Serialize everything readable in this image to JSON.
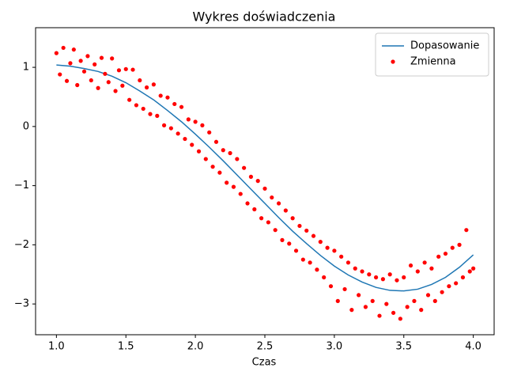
{
  "chart_data": {
    "type": "line",
    "title": "Wykres doświadczenia",
    "x_label": "Czas",
    "xlim": [
      0.85,
      4.15
    ],
    "ylim": [
      -3.52,
      1.67
    ],
    "xticks": [
      {
        "value": 1,
        "label": "1.0"
      },
      1.5,
      {
        "value": 2,
        "label": "2.0"
      },
      2.5,
      {
        "value": 3,
        "label": "3.0"
      },
      3.5,
      {
        "value": 4,
        "label": "4.0"
      }
    ],
    "yticks": [
      {
        "value": -3,
        "label": "−3"
      },
      {
        "value": -2,
        "label": "−2"
      },
      {
        "value": -1,
        "label": "−1"
      },
      0,
      1
    ],
    "legend": "upper right",
    "series": [
      {
        "name": "Dopasowanie",
        "type": "line",
        "color": "#1f77b4",
        "x": [
          1.0,
          1.1,
          1.2,
          1.3,
          1.4,
          1.5,
          1.6,
          1.7,
          1.8,
          1.9,
          2.0,
          2.1,
          2.2,
          2.3,
          2.4,
          2.5,
          2.6,
          2.7,
          2.8,
          2.9,
          3.0,
          3.1,
          3.2,
          3.3,
          3.4,
          3.5,
          3.6,
          3.7,
          3.8,
          3.9,
          4.0
        ],
        "values": [
          1.04,
          1.02,
          0.98,
          0.93,
          0.85,
          0.74,
          0.6,
          0.45,
          0.27,
          0.08,
          -0.13,
          -0.35,
          -0.58,
          -0.82,
          -1.06,
          -1.3,
          -1.54,
          -1.77,
          -1.98,
          -2.18,
          -2.36,
          -2.51,
          -2.63,
          -2.72,
          -2.77,
          -2.78,
          -2.75,
          -2.67,
          -2.55,
          -2.38,
          -2.17
        ]
      },
      {
        "name": "Zmienna",
        "type": "scatter",
        "color": "#ff0000",
        "x": [
          1.0,
          1.025,
          1.05,
          1.075,
          1.1,
          1.125,
          1.15,
          1.175,
          1.2,
          1.225,
          1.25,
          1.275,
          1.3,
          1.325,
          1.35,
          1.375,
          1.4,
          1.425,
          1.45,
          1.475,
          1.5,
          1.525,
          1.55,
          1.575,
          1.6,
          1.625,
          1.65,
          1.675,
          1.7,
          1.725,
          1.75,
          1.775,
          1.8,
          1.825,
          1.85,
          1.875,
          1.9,
          1.925,
          1.95,
          1.975,
          2.0,
          2.025,
          2.05,
          2.075,
          2.1,
          2.125,
          2.15,
          2.175,
          2.2,
          2.225,
          2.25,
          2.275,
          2.3,
          2.325,
          2.35,
          2.375,
          2.4,
          2.425,
          2.45,
          2.475,
          2.5,
          2.525,
          2.55,
          2.575,
          2.6,
          2.625,
          2.65,
          2.675,
          2.7,
          2.725,
          2.75,
          2.775,
          2.8,
          2.825,
          2.85,
          2.875,
          2.9,
          2.925,
          2.95,
          2.975,
          3.0,
          3.025,
          3.05,
          3.075,
          3.1,
          3.125,
          3.15,
          3.175,
          3.2,
          3.225,
          3.25,
          3.275,
          3.3,
          3.325,
          3.35,
          3.375,
          3.4,
          3.425,
          3.45,
          3.475,
          3.5,
          3.525,
          3.55,
          3.575,
          3.6,
          3.625,
          3.65,
          3.675,
          3.7,
          3.725,
          3.75,
          3.775,
          3.8,
          3.825,
          3.85,
          3.875,
          3.9,
          3.925,
          3.95,
          3.975,
          4.0
        ],
        "values": [
          1.24,
          0.88,
          1.33,
          0.77,
          1.07,
          1.3,
          0.7,
          1.11,
          0.93,
          1.19,
          0.78,
          1.05,
          0.65,
          1.16,
          0.89,
          0.75,
          1.15,
          0.6,
          0.95,
          0.69,
          0.97,
          0.45,
          0.96,
          0.36,
          0.78,
          0.3,
          0.66,
          0.21,
          0.71,
          0.18,
          0.52,
          0.02,
          0.49,
          -0.03,
          0.38,
          -0.12,
          0.33,
          -0.21,
          0.12,
          -0.31,
          0.08,
          -0.42,
          0.02,
          -0.55,
          -0.1,
          -0.68,
          -0.26,
          -0.78,
          -0.4,
          -0.95,
          -0.45,
          -1.02,
          -0.55,
          -1.14,
          -0.7,
          -1.3,
          -0.85,
          -1.4,
          -0.92,
          -1.55,
          -1.05,
          -1.62,
          -1.2,
          -1.75,
          -1.3,
          -1.92,
          -1.42,
          -1.98,
          -1.55,
          -2.1,
          -1.68,
          -2.25,
          -1.76,
          -2.3,
          -1.85,
          -2.42,
          -1.95,
          -2.55,
          -2.05,
          -2.7,
          -2.1,
          -2.95,
          -2.2,
          -2.75,
          -2.3,
          -3.1,
          -2.4,
          -2.85,
          -2.45,
          -3.05,
          -2.5,
          -2.95,
          -2.55,
          -3.2,
          -2.58,
          -3.0,
          -2.5,
          -3.15,
          -2.6,
          -3.25,
          -2.55,
          -3.05,
          -2.35,
          -2.95,
          -2.45,
          -3.1,
          -2.3,
          -2.85,
          -2.4,
          -2.95,
          -2.2,
          -2.8,
          -2.15,
          -2.7,
          -2.05,
          -2.65,
          -2.0,
          -2.55,
          -1.75,
          -2.45,
          -2.4
        ]
      }
    ]
  }
}
